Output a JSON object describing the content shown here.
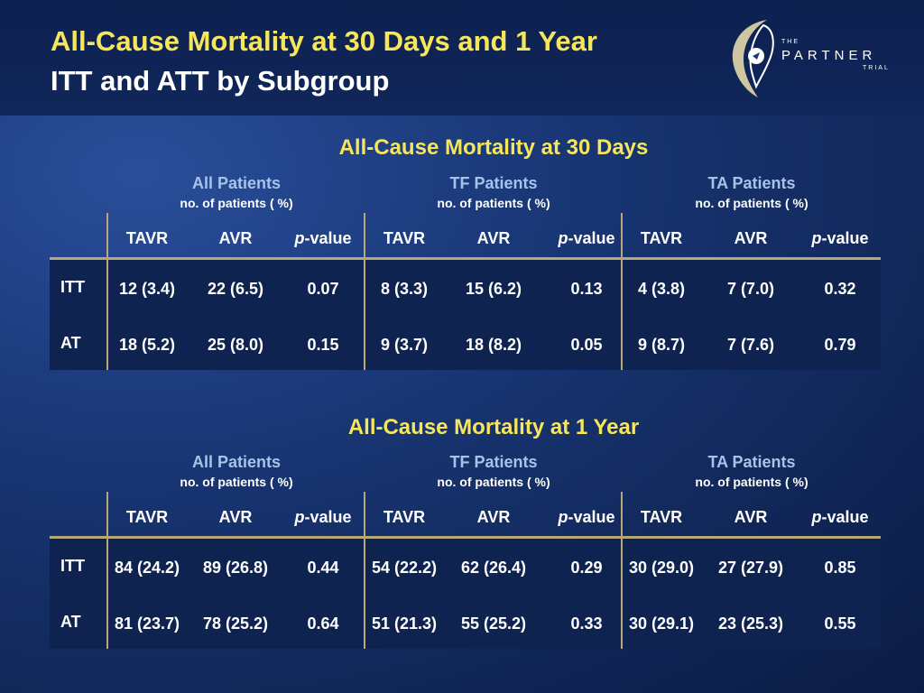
{
  "slide": {
    "title_line1": "All-Cause Mortality at 30 Days and 1 Year",
    "title_line2": "ITT and ATT by Subgroup"
  },
  "logo": {
    "the": "THE",
    "name": "PARTNER",
    "trial": "TRIAL"
  },
  "groups": [
    {
      "name": "All Patients",
      "sub": "no. of patients ( %)"
    },
    {
      "name": "TF Patients",
      "sub": "no. of patients ( %)"
    },
    {
      "name": "TA Patients",
      "sub": "no. of patients ( %)"
    }
  ],
  "columns": {
    "tavr": "TAVR",
    "avr": "AVR",
    "p_italic": "p",
    "p_rest": "-value"
  },
  "tables": [
    {
      "title": "All-Cause Mortality at 30 Days",
      "rows": [
        {
          "label": "ITT",
          "cells": [
            "12 (3.4)",
            "22 (6.5)",
            "0.07",
            "8 (3.3)",
            "15 (6.2)",
            "0.13",
            "4 (3.8)",
            "7 (7.0)",
            "0.32"
          ]
        },
        {
          "label": "AT",
          "cells": [
            "18 (5.2)",
            "25 (8.0)",
            "0.15",
            "9 (3.7)",
            "18 (8.2)",
            "0.05",
            "9 (8.7)",
            "7 (7.6)",
            "0.79"
          ]
        }
      ]
    },
    {
      "title": "All-Cause Mortality at 1 Year",
      "rows": [
        {
          "label": "ITT",
          "cells": [
            "84 (24.2)",
            "89 (26.8)",
            "0.44",
            "54 (22.2)",
            "62 (26.4)",
            "0.29",
            "30 (29.0)",
            "27 (27.9)",
            "0.85"
          ]
        },
        {
          "label": "AT",
          "cells": [
            "81 (23.7)",
            "78 (25.2)",
            "0.64",
            "51 (21.3)",
            "55 (25.2)",
            "0.33",
            "30 (29.1)",
            "23 (25.3)",
            "0.55"
          ]
        }
      ]
    }
  ]
}
